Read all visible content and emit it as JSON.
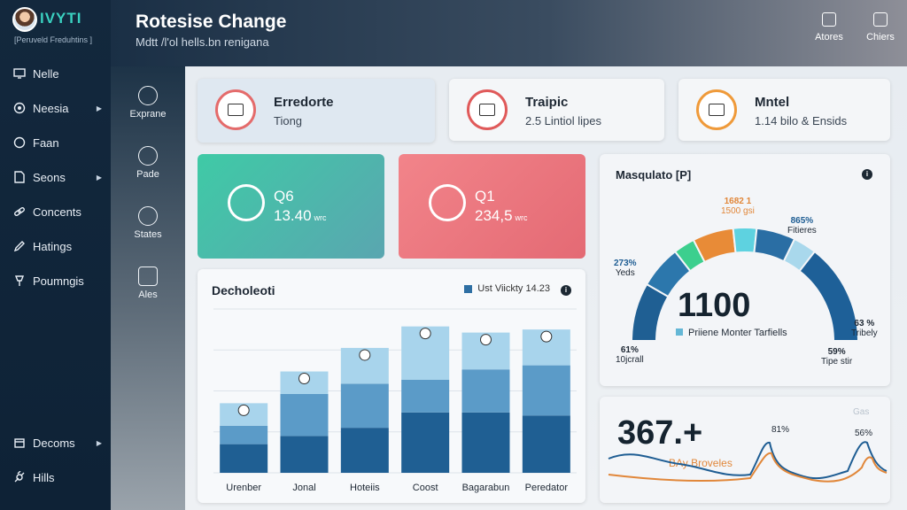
{
  "brand": {
    "logo": "IVYTI",
    "tagline": "[Peruveld Freduhtins ]"
  },
  "sidebar": {
    "items": [
      {
        "label": "Nelle",
        "icon": "monitor-icon",
        "chevron": false
      },
      {
        "label": "Neesia",
        "icon": "target-icon",
        "chevron": true
      },
      {
        "label": "Faan",
        "icon": "circle-icon",
        "chevron": false
      },
      {
        "label": "Seons",
        "icon": "document-icon",
        "chevron": true
      },
      {
        "label": "Concents",
        "icon": "chain-icon",
        "chevron": false
      },
      {
        "label": "Hatings",
        "icon": "pen-icon",
        "chevron": false
      },
      {
        "label": "Poumngis",
        "icon": "pin-icon",
        "chevron": false
      },
      {
        "label": "Decoms",
        "icon": "box-icon",
        "chevron": true
      },
      {
        "label": "Hills",
        "icon": "link-icon",
        "chevron": false
      }
    ]
  },
  "rail": {
    "items": [
      {
        "label": "Exprane",
        "icon": "flows-icon"
      },
      {
        "label": "Pade",
        "icon": "lock-icon"
      },
      {
        "label": "States",
        "icon": "globe-icon"
      },
      {
        "label": "Ales",
        "icon": "window-icon"
      }
    ]
  },
  "header": {
    "title": "Rotesise Change",
    "subtitle": "Mdtt /l'ol hells.bn renigana",
    "buttons": [
      {
        "label": "Atores",
        "icon": "grid-icon"
      },
      {
        "label": "Chiers",
        "icon": "export-icon"
      }
    ]
  },
  "info_cards": [
    {
      "title": "Erredorte",
      "subtitle": "Tiong",
      "icon": "server-icon"
    },
    {
      "title": "Traipic",
      "subtitle": "2.5 Lintiol lipes",
      "icon": "keyboard-icon"
    },
    {
      "title": "Mntel",
      "subtitle": "1.14 bilo & Ensids",
      "icon": "database-icon"
    }
  ],
  "stat_cards": [
    {
      "label": "Q6",
      "value": "13.40",
      "unit": "wrc",
      "icon": "check-icon",
      "colors": [
        "#3fcaa6",
        "#5aa6b0"
      ]
    },
    {
      "label": "Q1",
      "value": "234,5",
      "unit": "wrc",
      "icon": "power-icon",
      "colors": [
        "#f2848a",
        "#e46a74"
      ]
    }
  ],
  "bar_chart": {
    "title": "Decholeoti",
    "legend": "Ust Viickty 14.23",
    "info": "i"
  },
  "gauge": {
    "title": "Masqulato [P]",
    "info": "i",
    "value": "1100",
    "caption": "Priiene Monter Tarfiells",
    "labels": [
      {
        "value": "1682 1",
        "text": "1500 gsi"
      },
      {
        "value": "865%",
        "text": "Fitieres"
      },
      {
        "value": "273%",
        "text": "Yeds"
      },
      {
        "value": "63 %",
        "text": "Tribely"
      },
      {
        "value": "61%",
        "text": "10jcrall"
      },
      {
        "value": "59%",
        "text": "Tipe stir"
      }
    ],
    "segment_colors": [
      "#1f5f93",
      "#2c77ac",
      "#3ccf8e",
      "#e88b37",
      "#5ed2e0",
      "#2a6ea4",
      "#a9d8ec",
      "#1e6098"
    ]
  },
  "trend": {
    "value": "367.+",
    "subtitle": "BAy Broveles",
    "labels": [
      "81%",
      "56%",
      "Gas"
    ],
    "colors": [
      "#1e5d93",
      "#e1873a"
    ]
  },
  "chart_data": {
    "type": "bar",
    "title": "Decholeoti",
    "categories": [
      "Urenber",
      "Jonal",
      "Hoteiis",
      "Coost",
      "Bagarabun",
      "Peredator"
    ],
    "series": [
      {
        "name": "Ust Viickty 14.23",
        "values": [
          28,
          36,
          44,
          59,
          59,
          56
        ]
      },
      {
        "values": [
          18,
          41,
          43,
          32,
          42,
          49
        ]
      },
      {
        "values": [
          22,
          22,
          35,
          52,
          36,
          35
        ]
      }
    ],
    "colors": [
      "#1f5f93",
      "#5b9bc8",
      "#a8d4ec"
    ],
    "ylim": [
      0,
      160
    ],
    "grid": true,
    "legend": "top-right"
  }
}
